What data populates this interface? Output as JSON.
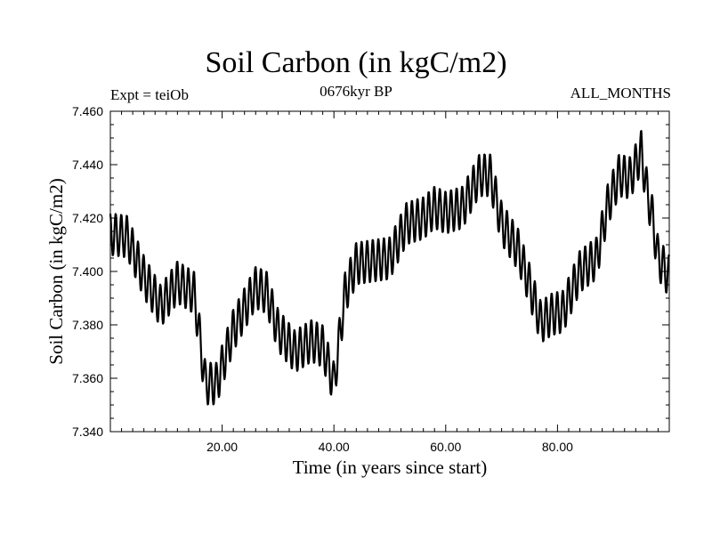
{
  "chart_data": {
    "type": "line",
    "title": "Soil Carbon (in kgC/m2)",
    "subtitle": "0676kyr BP",
    "left_annotation": "Expt = teiOb",
    "right_annotation": "ALL_MONTHS",
    "xlabel": "Time (in years since start)",
    "ylabel": "Soil Carbon (in kgC/m2)",
    "xlim": [
      0,
      100
    ],
    "ylim": [
      7.34,
      7.46
    ],
    "x_ticks": [
      20,
      40,
      60,
      80
    ],
    "x_tick_labels": [
      "20.00",
      "40.00",
      "60.00",
      "80.00"
    ],
    "y_ticks": [
      7.34,
      7.36,
      7.38,
      7.4,
      7.42,
      7.44,
      7.46
    ],
    "y_tick_labels": [
      "7.340",
      "7.360",
      "7.380",
      "7.400",
      "7.420",
      "7.440",
      "7.460"
    ],
    "seasonal_amplitude": 0.008,
    "series": [
      {
        "name": "Soil Carbon",
        "description_of_sampling": "annual-mean envelope values; monthly cycle applied with seasonal_amplitude",
        "x": [
          0,
          3,
          6,
          9,
          12,
          15,
          17,
          19,
          22,
          26,
          28,
          30,
          33,
          36,
          38,
          40,
          42,
          44,
          47,
          50,
          53,
          56,
          58,
          60,
          63,
          66,
          68,
          70,
          73,
          75,
          77,
          79,
          81,
          84,
          87,
          89,
          91,
          93,
          95,
          96,
          97,
          98,
          100
        ],
        "y": [
          7.414,
          7.413,
          7.398,
          7.387,
          7.396,
          7.392,
          7.358,
          7.358,
          7.378,
          7.394,
          7.392,
          7.378,
          7.37,
          7.374,
          7.372,
          7.358,
          7.392,
          7.403,
          7.404,
          7.405,
          7.418,
          7.42,
          7.424,
          7.422,
          7.424,
          7.436,
          7.436,
          7.418,
          7.408,
          7.395,
          7.381,
          7.384,
          7.385,
          7.4,
          7.405,
          7.425,
          7.436,
          7.435,
          7.445,
          7.43,
          7.42,
          7.405,
          7.398
        ]
      }
    ]
  }
}
